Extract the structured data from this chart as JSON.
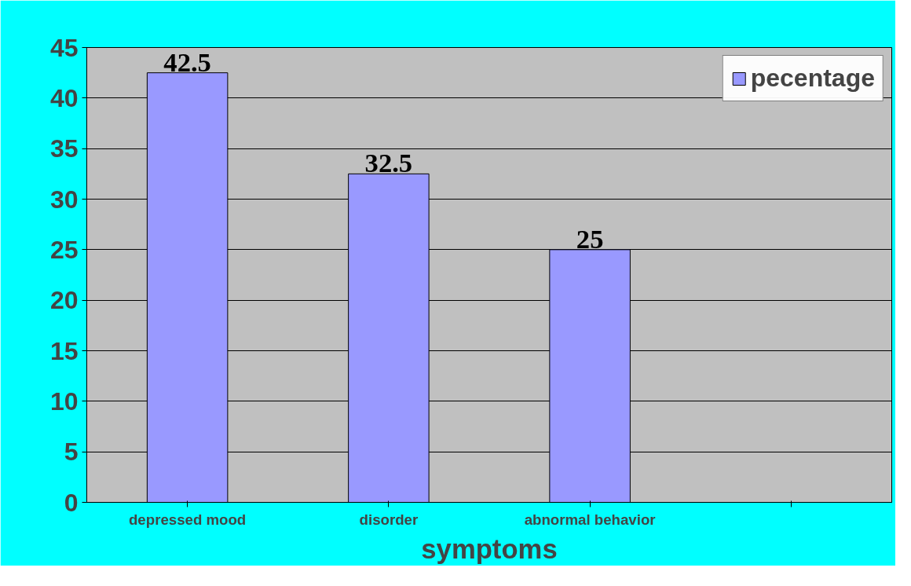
{
  "chart_data": {
    "type": "bar",
    "xlabel": "symptoms",
    "categories": [
      "depressed mood",
      "disorder",
      "abnormal behavior",
      null
    ],
    "series": [
      {
        "name": "pecentage",
        "color": "#9999ff",
        "values": [
          42.5,
          32.5,
          25,
          null
        ]
      }
    ],
    "ylim": [
      0,
      45
    ],
    "yticks": [
      0,
      5,
      10,
      15,
      20,
      25,
      30,
      35,
      40,
      45
    ],
    "grid": "y",
    "legend": "top right",
    "data_labels": true
  }
}
